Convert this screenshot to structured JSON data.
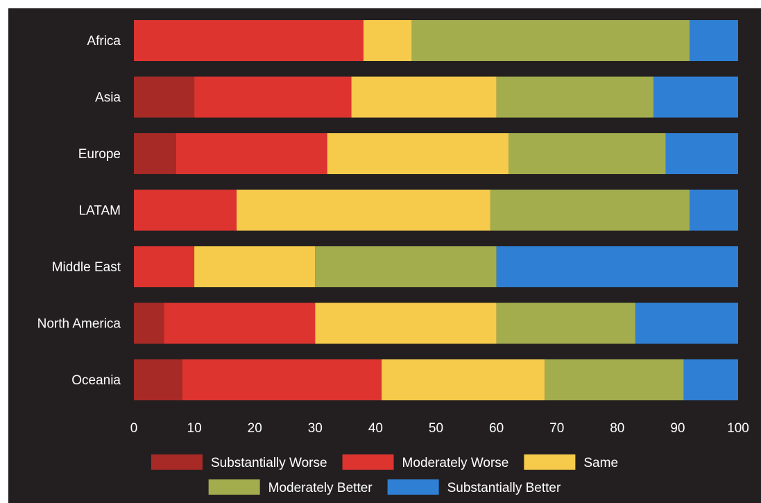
{
  "chart_data": {
    "type": "bar",
    "orientation": "horizontal",
    "stacked": true,
    "title": "",
    "xlabel": "",
    "ylabel": "",
    "xlim": [
      0,
      100
    ],
    "x_ticks": [
      "0",
      "10",
      "20",
      "30",
      "40",
      "50",
      "60",
      "70",
      "80",
      "90",
      "100"
    ],
    "grid": false,
    "legend_position": "bottom",
    "background": "#231f20",
    "categories": [
      "Africa",
      "Asia",
      "Europe",
      "LATAM",
      "Middle East",
      "North America",
      "Oceania"
    ],
    "series": [
      {
        "name": "Substantially Worse",
        "color": "#a82a26",
        "values": [
          0,
          10,
          7,
          0,
          0,
          5,
          8
        ]
      },
      {
        "name": "Moderately Worse",
        "color": "#dd3430",
        "values": [
          38,
          26,
          25,
          17,
          10,
          25,
          33
        ]
      },
      {
        "name": "Same",
        "color": "#f6cb4b",
        "values": [
          8,
          24,
          30,
          42,
          20,
          30,
          27
        ]
      },
      {
        "name": "Moderately Better",
        "color": "#a3ad4e",
        "values": [
          46,
          26,
          26,
          33,
          30,
          23,
          23
        ]
      },
      {
        "name": "Substantially Better",
        "color": "#2f80d5",
        "values": [
          8,
          14,
          12,
          8,
          40,
          17,
          9
        ]
      }
    ]
  }
}
